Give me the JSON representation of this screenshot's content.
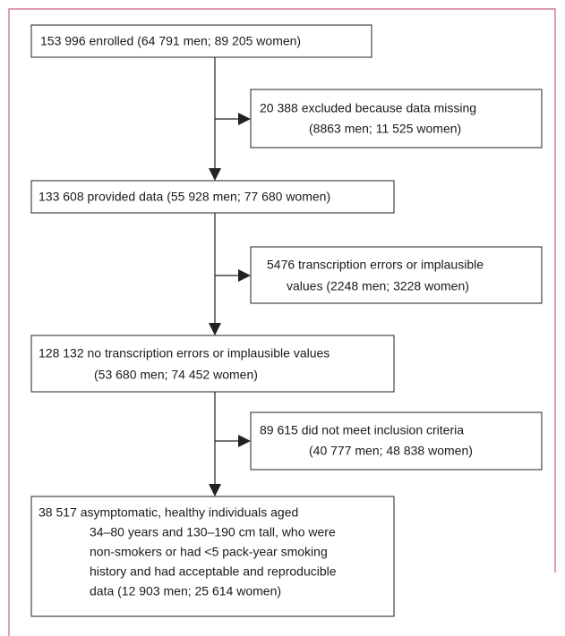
{
  "nodes": [
    {
      "lines": [
        "153 996 enrolled (64 791 men; 89 205 women)"
      ]
    },
    {
      "lines": [
        "20 388 excluded because data missing",
        "(8863 men; 11 525 women)"
      ]
    },
    {
      "lines": [
        "133 608 provided data (55 928 men; 77 680 women)"
      ]
    },
    {
      "lines": [
        "5476 transcription errors or implausible",
        "values (2248 men; 3228 women)"
      ]
    },
    {
      "lines": [
        "128 132 no transcription errors or implausible values",
        "(53 680 men; 74 452 women)"
      ]
    },
    {
      "lines": [
        "89 615 did not meet inclusion criteria",
        "(40 777 men; 48 838 women)"
      ]
    },
    {
      "lines": [
        "38 517 asymptomatic, healthy individuals aged",
        "34–80 years and 130–190 cm tall, who were",
        "non-smokers or had <5 pack-year smoking",
        "history and had acceptable and reproducible",
        "data (12 903 men; 25 614 women)"
      ]
    }
  ]
}
